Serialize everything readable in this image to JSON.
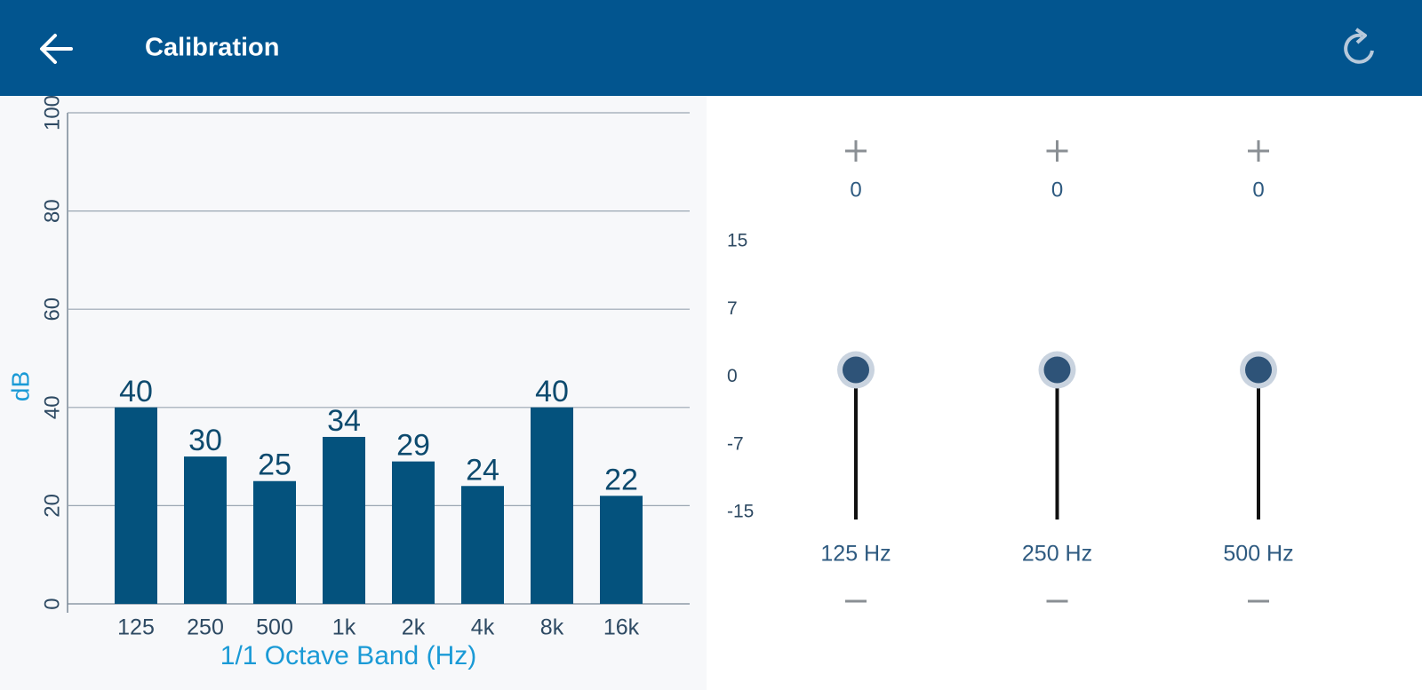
{
  "header": {
    "title": "Calibration"
  },
  "chart_data": {
    "type": "bar",
    "categories": [
      "125",
      "250",
      "500",
      "1k",
      "2k",
      "4k",
      "8k",
      "16k"
    ],
    "values": [
      40,
      30,
      25,
      34,
      29,
      24,
      40,
      22
    ],
    "color": "#04527d",
    "ylim": [
      0,
      100
    ],
    "yticks": [
      0,
      20,
      40,
      60,
      80,
      100
    ],
    "grid": true,
    "xlabel": "1/1 Octave Band (Hz)",
    "ylabel": "dB"
  },
  "sliders": {
    "scale": [
      15,
      7,
      0,
      -7,
      -15
    ],
    "bands": [
      {
        "label": "125 Hz",
        "value": 0
      },
      {
        "label": "250 Hz",
        "value": 0
      },
      {
        "label": "500 Hz",
        "value": 0
      }
    ]
  }
}
